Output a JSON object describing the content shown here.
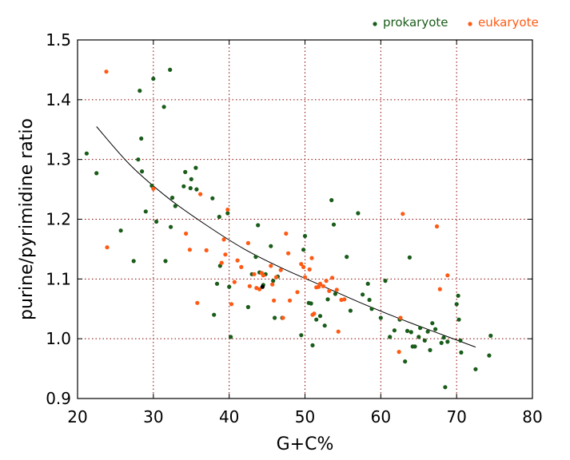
{
  "chart_data": {
    "type": "scatter",
    "title": "",
    "xlabel": "G+C%",
    "ylabel": "purine/pyrimidine ratio",
    "xlim": [
      20,
      80
    ],
    "ylim": [
      0.9,
      1.5
    ],
    "x_ticks": [
      20,
      30,
      40,
      50,
      60,
      70,
      80
    ],
    "y_ticks": [
      0.9,
      1.0,
      1.1,
      1.2,
      1.3,
      1.4,
      1.5
    ],
    "x_tick_labels": [
      "20",
      "30",
      "40",
      "50",
      "60",
      "70",
      "80"
    ],
    "y_tick_labels": [
      "0.9",
      "1.0",
      "1.1",
      "1.2",
      "1.3",
      "1.4",
      "1.5"
    ],
    "grid": true,
    "legend_position": "top-right, above plot",
    "series": [
      {
        "name": "prokaryote",
        "color": "#1a5c1a",
        "points": [
          [
            21.2,
            1.31
          ],
          [
            22.5,
            1.277
          ],
          [
            25.7,
            1.181
          ],
          [
            27.4,
            1.13
          ],
          [
            28.0,
            1.3
          ],
          [
            28.2,
            1.415
          ],
          [
            28.4,
            1.335
          ],
          [
            28.5,
            1.28
          ],
          [
            29.0,
            1.213
          ],
          [
            29.8,
            1.256
          ],
          [
            30.0,
            1.435
          ],
          [
            30.4,
            1.196
          ],
          [
            31.4,
            1.388
          ],
          [
            31.6,
            1.13
          ],
          [
            32.2,
            1.45
          ],
          [
            32.3,
            1.187
          ],
          [
            32.5,
            1.236
          ],
          [
            32.9,
            1.222
          ],
          [
            34.0,
            1.255
          ],
          [
            34.2,
            1.279
          ],
          [
            34.9,
            1.252
          ],
          [
            35.0,
            1.267
          ],
          [
            35.6,
            1.286
          ],
          [
            35.7,
            1.25
          ],
          [
            37.8,
            1.235
          ],
          [
            38.0,
            1.04
          ],
          [
            38.4,
            1.092
          ],
          [
            38.7,
            1.204
          ],
          [
            38.8,
            1.122
          ],
          [
            39.8,
            1.21
          ],
          [
            40.0,
            1.087
          ],
          [
            40.2,
            1.003
          ],
          [
            42.5,
            1.053
          ],
          [
            43.0,
            1.108
          ],
          [
            43.5,
            1.137
          ],
          [
            43.8,
            1.19
          ],
          [
            44.0,
            1.111
          ],
          [
            44.5,
            1.09
          ],
          [
            44.8,
            1.108
          ],
          [
            45.5,
            1.155
          ],
          [
            45.8,
            1.097
          ],
          [
            46.0,
            1.035
          ],
          [
            46.4,
            1.104
          ],
          [
            47.0,
            1.035
          ],
          [
            49.5,
            1.006
          ],
          [
            49.8,
            1.149
          ],
          [
            50.0,
            1.172
          ],
          [
            50.5,
            1.06
          ],
          [
            50.8,
            1.059
          ],
          [
            51.0,
            0.989
          ],
          [
            51.5,
            1.032
          ],
          [
            52.0,
            1.038
          ],
          [
            52.6,
            1.022
          ],
          [
            53.0,
            1.066
          ],
          [
            53.5,
            1.232
          ],
          [
            53.8,
            1.191
          ],
          [
            54.0,
            1.075
          ],
          [
            55.5,
            1.137
          ],
          [
            56.0,
            1.047
          ],
          [
            57.0,
            1.21
          ],
          [
            57.6,
            1.074
          ],
          [
            58.3,
            1.092
          ],
          [
            58.5,
            1.065
          ],
          [
            58.8,
            1.05
          ],
          [
            60.0,
            1.035
          ],
          [
            60.6,
            1.097
          ],
          [
            61.2,
            1.003
          ],
          [
            61.8,
            1.014
          ],
          [
            62.5,
            1.032
          ],
          [
            63.2,
            0.962
          ],
          [
            63.5,
            1.013
          ],
          [
            63.8,
            1.136
          ],
          [
            64.0,
            1.011
          ],
          [
            64.2,
            0.987
          ],
          [
            64.5,
            0.987
          ],
          [
            65.0,
            1.003
          ],
          [
            65.2,
            1.018
          ],
          [
            65.8,
            0.997
          ],
          [
            66.2,
            1.012
          ],
          [
            66.5,
            0.981
          ],
          [
            66.8,
            1.026
          ],
          [
            67.2,
            1.016
          ],
          [
            68.0,
            0.993
          ],
          [
            68.3,
            1.002
          ],
          [
            68.5,
            0.919
          ],
          [
            68.8,
            0.995
          ],
          [
            70.0,
            1.058
          ],
          [
            70.2,
            1.072
          ],
          [
            70.3,
            1.032
          ],
          [
            70.5,
            0.997
          ],
          [
            70.6,
            0.977
          ],
          [
            72.5,
            0.949
          ],
          [
            74.3,
            0.972
          ],
          [
            74.5,
            1.005
          ]
        ]
      },
      {
        "name": "eukaryote",
        "color": "#ff5a14",
        "points": [
          [
            23.8,
            1.447
          ],
          [
            23.9,
            1.153
          ],
          [
            30.0,
            1.251
          ],
          [
            34.3,
            1.176
          ],
          [
            34.8,
            1.149
          ],
          [
            35.8,
            1.06
          ],
          [
            36.2,
            1.242
          ],
          [
            37.0,
            1.148
          ],
          [
            39.0,
            1.127
          ],
          [
            39.3,
            1.166
          ],
          [
            39.5,
            1.141
          ],
          [
            39.8,
            1.216
          ],
          [
            40.3,
            1.058
          ],
          [
            40.7,
            1.095
          ],
          [
            41.1,
            1.131
          ],
          [
            41.6,
            1.12
          ],
          [
            42.5,
            1.16
          ],
          [
            42.7,
            1.088
          ],
          [
            43.3,
            1.108
          ],
          [
            43.6,
            1.085
          ],
          [
            44.0,
            1.083
          ],
          [
            44.3,
            1.11
          ],
          [
            44.5,
            1.106
          ],
          [
            45.5,
            1.122
          ],
          [
            45.7,
            1.091
          ],
          [
            45.9,
            1.064
          ],
          [
            46.2,
            1.103
          ],
          [
            46.8,
            1.115
          ],
          [
            47.1,
            1.035
          ],
          [
            47.5,
            1.176
          ],
          [
            47.8,
            1.143
          ],
          [
            48.0,
            1.064
          ],
          [
            49.0,
            1.078
          ],
          [
            49.5,
            1.125
          ],
          [
            49.8,
            1.12
          ],
          [
            50.0,
            1.103
          ],
          [
            50.6,
            1.116
          ],
          [
            50.9,
            1.135
          ],
          [
            51.0,
            1.04
          ],
          [
            51.2,
            1.042
          ],
          [
            51.5,
            1.086
          ],
          [
            51.8,
            1.087
          ],
          [
            52.0,
            1.092
          ],
          [
            52.4,
            1.088
          ],
          [
            52.8,
            1.097
          ],
          [
            53.2,
            1.08
          ],
          [
            53.6,
            1.102
          ],
          [
            54.2,
            1.082
          ],
          [
            54.4,
            1.012
          ],
          [
            54.8,
            1.065
          ],
          [
            55.2,
            1.066
          ],
          [
            62.4,
            0.978
          ],
          [
            62.6,
            1.035
          ],
          [
            62.9,
            1.209
          ],
          [
            67.4,
            1.188
          ],
          [
            67.8,
            1.083
          ],
          [
            68.8,
            1.106
          ]
        ]
      },
      {
        "name": "",
        "color": "#000000",
        "points": [
          [
            44.4,
            1.087
          ]
        ]
      }
    ],
    "trendline": {
      "color": "#000000",
      "points": [
        [
          22.5,
          1.355
        ],
        [
          27,
          1.29
        ],
        [
          32,
          1.235
        ],
        [
          37,
          1.19
        ],
        [
          42,
          1.15
        ],
        [
          47,
          1.118
        ],
        [
          52,
          1.09
        ],
        [
          57,
          1.062
        ],
        [
          62,
          1.036
        ],
        [
          67,
          1.012
        ],
        [
          72.5,
          0.986
        ]
      ]
    }
  }
}
